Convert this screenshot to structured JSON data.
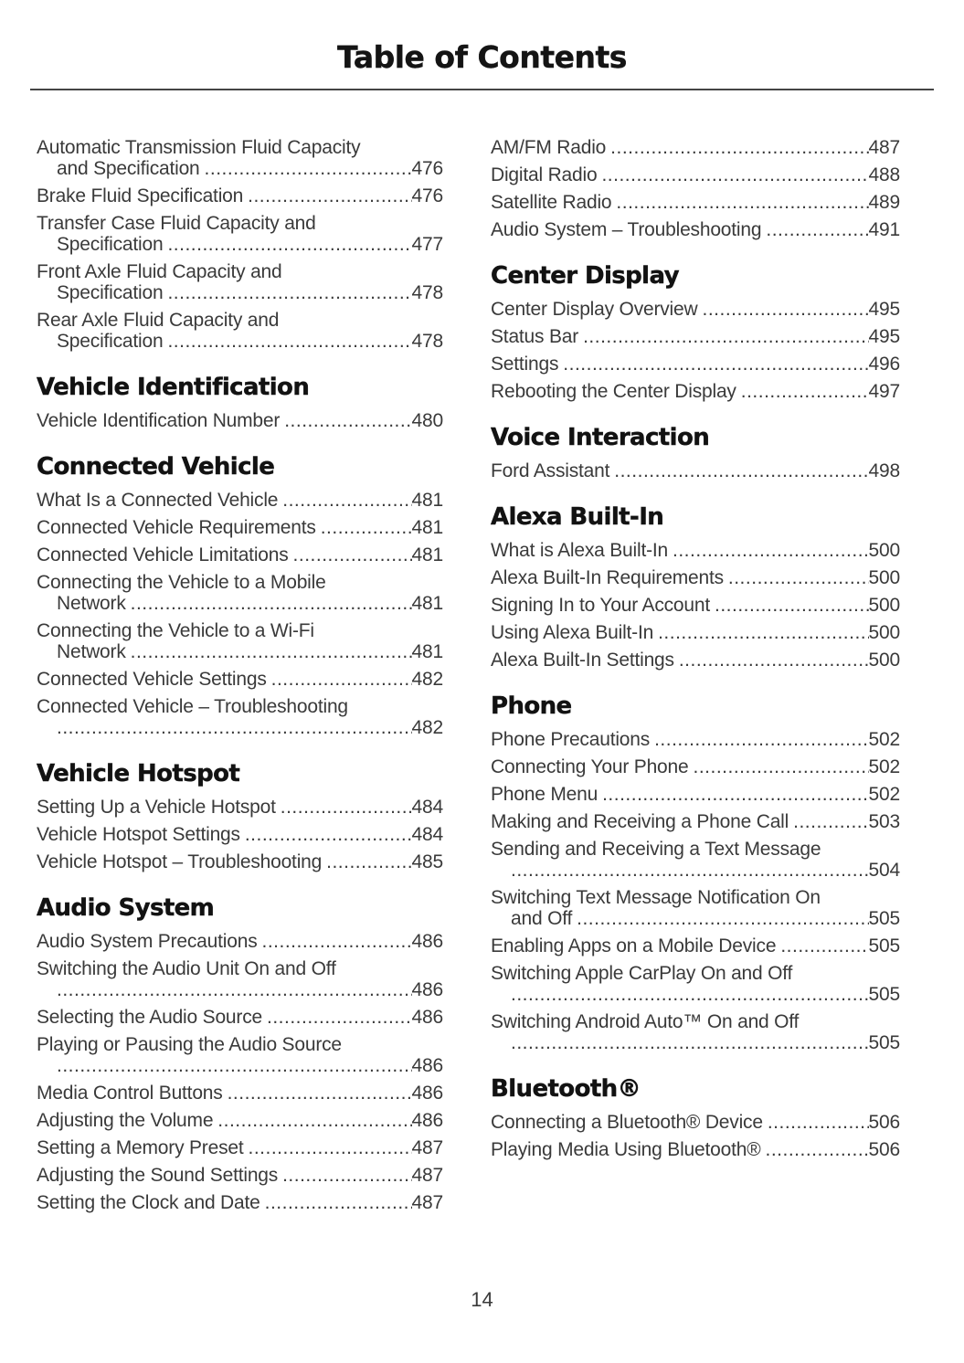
{
  "title": "Table of Contents",
  "footer": {
    "page_number": "14"
  },
  "colors": {
    "background": "#ffffff",
    "body_text": "#3a3a3a",
    "heading_text": "#121212",
    "rule": "#454545"
  },
  "columns": [
    {
      "sections": [
        {
          "heading": "",
          "entries": [
            {
              "pre_lines": [
                "Automatic Transmission Fluid Capacity"
              ],
              "text": "and Specification",
              "page": "476"
            },
            {
              "pre_lines": [],
              "text": "Brake Fluid Specification",
              "page": "476"
            },
            {
              "pre_lines": [
                "Transfer Case Fluid Capacity and"
              ],
              "text": "Specification",
              "page": "477"
            },
            {
              "pre_lines": [
                "Front Axle Fluid Capacity and"
              ],
              "text": "Specification",
              "page": "478"
            },
            {
              "pre_lines": [
                "Rear Axle Fluid Capacity and"
              ],
              "text": "Specification",
              "page": "478"
            }
          ]
        },
        {
          "heading": "Vehicle Identification",
          "entries": [
            {
              "pre_lines": [],
              "text": "Vehicle Identification Number",
              "page": "480"
            }
          ]
        },
        {
          "heading": "Connected Vehicle",
          "entries": [
            {
              "pre_lines": [],
              "text": "What Is a Connected Vehicle",
              "page": "481"
            },
            {
              "pre_lines": [],
              "text": "Connected Vehicle Requirements",
              "page": "481"
            },
            {
              "pre_lines": [],
              "text": "Connected Vehicle Limitations",
              "page": "481"
            },
            {
              "pre_lines": [
                "Connecting the Vehicle to a Mobile"
              ],
              "text": "Network",
              "page": "481"
            },
            {
              "pre_lines": [
                "Connecting the Vehicle to a Wi-Fi"
              ],
              "text": "Network",
              "page": "481"
            },
            {
              "pre_lines": [],
              "text": "Connected Vehicle Settings",
              "page": "482"
            },
            {
              "pre_lines": [
                "Connected Vehicle – Troubleshooting"
              ],
              "text": "",
              "page": "482"
            }
          ]
        },
        {
          "heading": "Vehicle Hotspot",
          "entries": [
            {
              "pre_lines": [],
              "text": "Setting Up a Vehicle Hotspot",
              "page": "484"
            },
            {
              "pre_lines": [],
              "text": "Vehicle Hotspot Settings",
              "page": "484"
            },
            {
              "pre_lines": [],
              "text": "Vehicle Hotspot – Troubleshooting",
              "page": "485"
            }
          ]
        },
        {
          "heading": "Audio System",
          "entries": [
            {
              "pre_lines": [],
              "text": "Audio System Precautions",
              "page": "486"
            },
            {
              "pre_lines": [
                "Switching the Audio Unit On and Off"
              ],
              "text": "",
              "page": "486"
            },
            {
              "pre_lines": [],
              "text": "Selecting the Audio Source",
              "page": "486"
            },
            {
              "pre_lines": [
                "Playing or Pausing the Audio Source"
              ],
              "text": "",
              "page": "486"
            },
            {
              "pre_lines": [],
              "text": "Media Control Buttons",
              "page": "486"
            },
            {
              "pre_lines": [],
              "text": "Adjusting the Volume",
              "page": "486"
            },
            {
              "pre_lines": [],
              "text": "Setting a Memory Preset",
              "page": "487"
            },
            {
              "pre_lines": [],
              "text": "Adjusting the Sound Settings",
              "page": "487"
            },
            {
              "pre_lines": [],
              "text": "Setting the Clock and Date",
              "page": "487"
            }
          ]
        }
      ]
    },
    {
      "sections": [
        {
          "heading": "",
          "entries": [
            {
              "pre_lines": [],
              "text": "AM/FM Radio",
              "page": "487"
            },
            {
              "pre_lines": [],
              "text": "Digital Radio",
              "page": "488"
            },
            {
              "pre_lines": [],
              "text": "Satellite Radio",
              "page": "489"
            },
            {
              "pre_lines": [],
              "text": "Audio System – Troubleshooting",
              "page": "491"
            }
          ]
        },
        {
          "heading": "Center Display",
          "entries": [
            {
              "pre_lines": [],
              "text": "Center Display Overview",
              "page": "495"
            },
            {
              "pre_lines": [],
              "text": "Status Bar",
              "page": "495"
            },
            {
              "pre_lines": [],
              "text": "Settings",
              "page": "496"
            },
            {
              "pre_lines": [],
              "text": "Rebooting the Center Display",
              "page": "497"
            }
          ]
        },
        {
          "heading": "Voice Interaction",
          "entries": [
            {
              "pre_lines": [],
              "text": "Ford Assistant",
              "page": "498"
            }
          ]
        },
        {
          "heading": "Alexa Built-In",
          "entries": [
            {
              "pre_lines": [],
              "text": "What is Alexa Built-In",
              "page": "500"
            },
            {
              "pre_lines": [],
              "text": "Alexa Built-In Requirements",
              "page": "500"
            },
            {
              "pre_lines": [],
              "text": "Signing In to Your Account",
              "page": "500"
            },
            {
              "pre_lines": [],
              "text": "Using Alexa Built-In",
              "page": "500"
            },
            {
              "pre_lines": [],
              "text": "Alexa Built-In Settings",
              "page": "500"
            }
          ]
        },
        {
          "heading": "Phone",
          "entries": [
            {
              "pre_lines": [],
              "text": "Phone Precautions",
              "page": "502"
            },
            {
              "pre_lines": [],
              "text": "Connecting Your Phone",
              "page": "502"
            },
            {
              "pre_lines": [],
              "text": "Phone Menu",
              "page": "502"
            },
            {
              "pre_lines": [],
              "text": "Making and Receiving a Phone Call",
              "page": "503"
            },
            {
              "pre_lines": [
                "Sending and Receiving a Text Message"
              ],
              "text": "",
              "page": "504"
            },
            {
              "pre_lines": [
                "Switching Text Message Notification On"
              ],
              "text": "and Off",
              "page": "505"
            },
            {
              "pre_lines": [],
              "text": "Enabling Apps on a Mobile Device",
              "page": "505"
            },
            {
              "pre_lines": [
                "Switching Apple CarPlay On and Off"
              ],
              "text": "",
              "page": "505"
            },
            {
              "pre_lines": [
                "Switching Android Auto™ On and Off"
              ],
              "text": "",
              "page": "505"
            }
          ]
        },
        {
          "heading": "Bluetooth®",
          "entries": [
            {
              "pre_lines": [],
              "text": "Connecting a Bluetooth® Device",
              "page": "506"
            },
            {
              "pre_lines": [],
              "text": "Playing Media Using Bluetooth®",
              "page": "506"
            }
          ]
        }
      ]
    }
  ]
}
